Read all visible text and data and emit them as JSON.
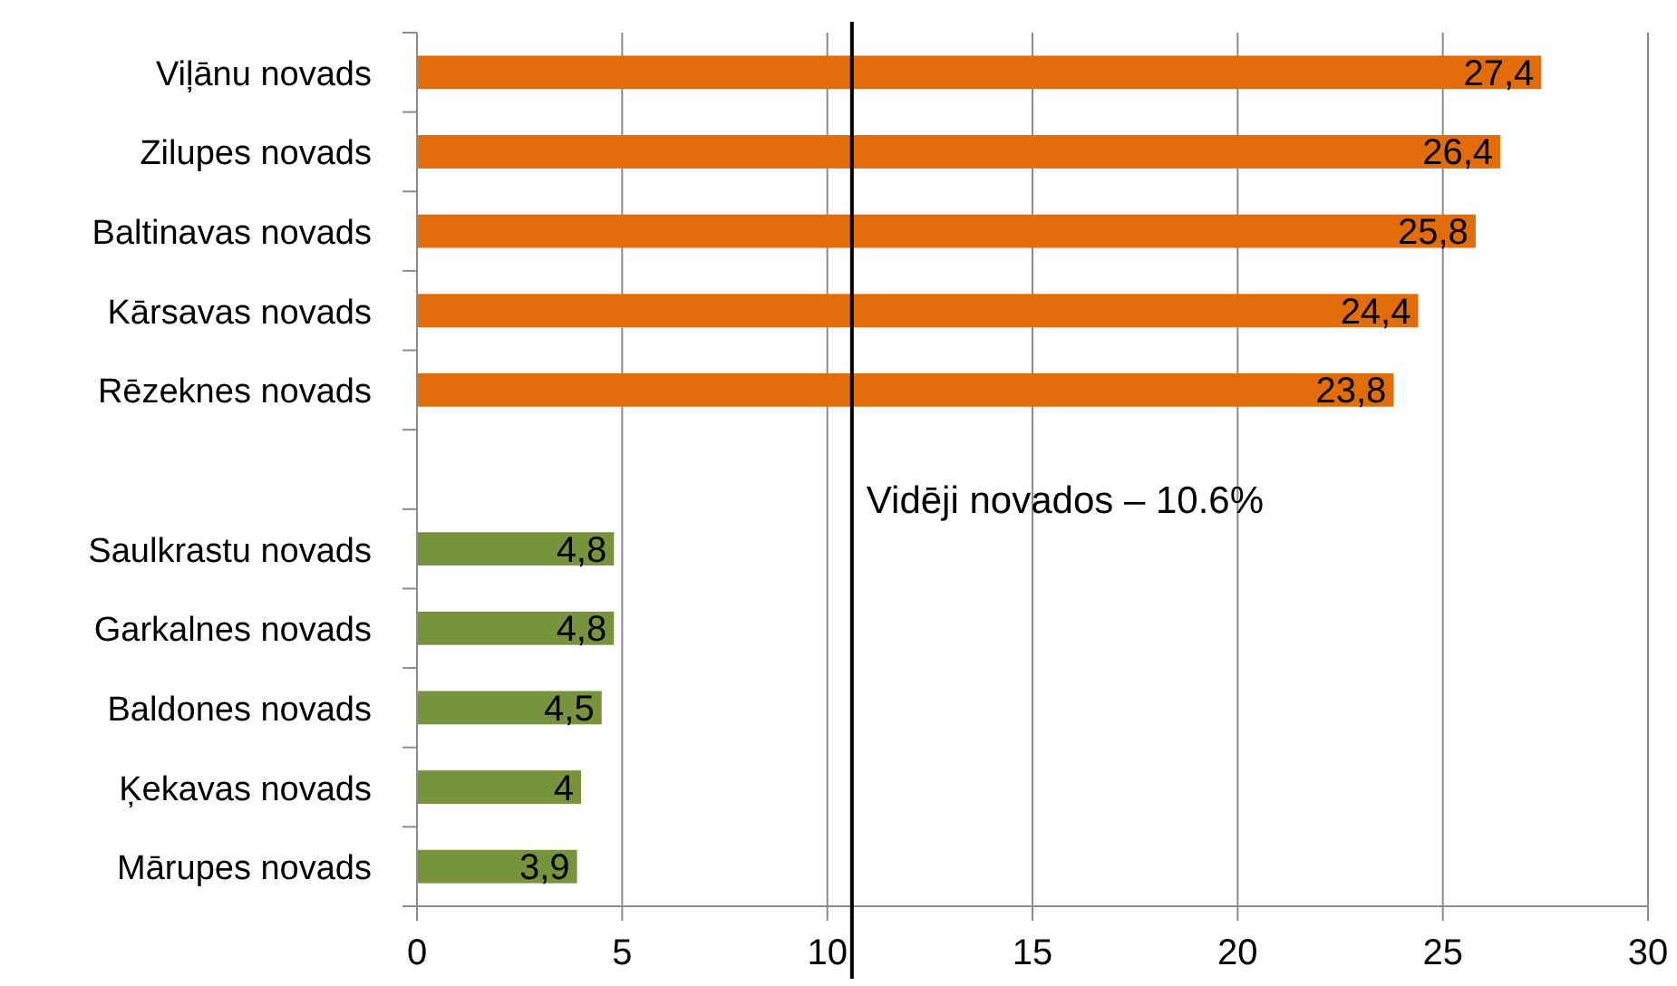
{
  "chart_data": {
    "type": "bar",
    "orientation": "horizontal",
    "categories": [
      "Viļānu novads",
      "Zilupes novads",
      "Baltinavas novads",
      "Kārsavas novads",
      "Rēzeknes novads",
      null,
      "Saulkrastu novads",
      "Garkalnes novads",
      "Baldones novads",
      "Ķekavas novads",
      "Mārupes novads"
    ],
    "values": [
      27.4,
      26.4,
      25.8,
      24.4,
      23.8,
      null,
      4.8,
      4.8,
      4.5,
      4,
      3.9
    ],
    "value_labels": [
      "27,4",
      "26,4",
      "25,8",
      "24,4",
      "23,8",
      null,
      "4,8",
      "4,8",
      "4,5",
      "4",
      "3,9"
    ],
    "colors": [
      "#e36c0a",
      "#e36c0a",
      "#e36c0a",
      "#e36c0a",
      "#e36c0a",
      null,
      "#77933c",
      "#77933c",
      "#77933c",
      "#77933c",
      "#77933c"
    ],
    "xlim": [
      0,
      30
    ],
    "xticks": [
      0,
      5,
      10,
      15,
      20,
      25,
      30
    ],
    "grid": "x",
    "ref_lines": [
      {
        "axis": "x",
        "value": 10.6,
        "label": "Vidēji novados – 10.6%",
        "color": "#000000"
      }
    ]
  }
}
